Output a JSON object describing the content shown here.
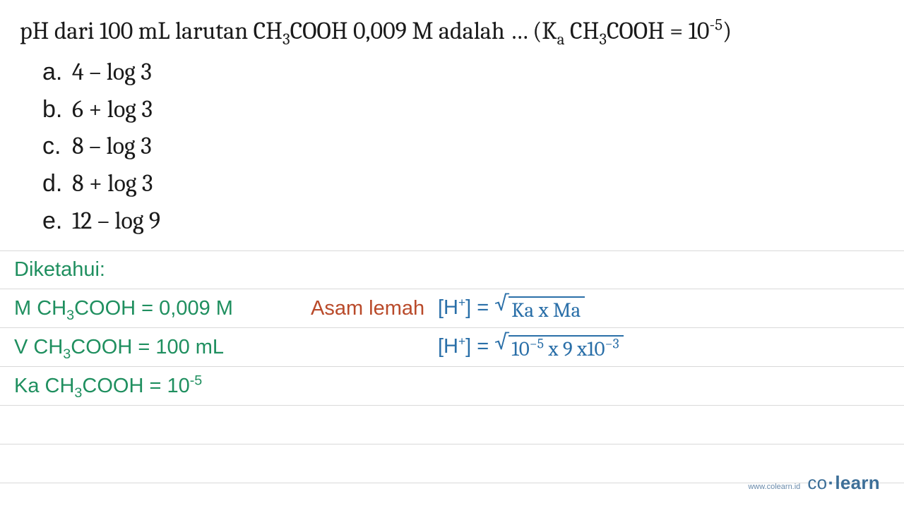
{
  "question": {
    "prefix": "pH dari 100 mL larutan CH",
    "sub1": "3",
    "mid1": "COOH 0,009 M adalah … (K",
    "ka_sub": "a",
    "mid2": " CH",
    "sub2": "3",
    "mid3": "COOH = 10",
    "exp": "-5",
    "suffix": ")"
  },
  "options": [
    {
      "letter": "a.",
      "text": "4 – log 3"
    },
    {
      "letter": "b.",
      "text": "6 + log 3"
    },
    {
      "letter": "c.",
      "text": "8 – log 3"
    },
    {
      "letter": "d.",
      "text": "8 + log 3"
    },
    {
      "letter": "e.",
      "text": "12 – log 9"
    }
  ],
  "work": {
    "heading": "Diketahui:",
    "row1_known_pre": "M CH",
    "row1_known_sub": "3",
    "row1_known_post": "COOH = 0,009 M",
    "row1_label": "Asam lemah",
    "row1_formula_lhs_pre": "[H",
    "row1_formula_lhs_sup": "+",
    "row1_formula_lhs_post": "] = ",
    "row1_formula_rhs": "Ka x Ma",
    "row2_known_pre": "V CH",
    "row2_known_sub": "3",
    "row2_known_post": "COOH = 100 mL",
    "row2_formula_lhs_pre": "[H",
    "row2_formula_lhs_sup": "+",
    "row2_formula_lhs_post": "] = ",
    "row2_rhs_a": "10",
    "row2_rhs_exp1": "−5",
    "row2_rhs_b": " x 9 x10",
    "row2_rhs_exp2": "−3",
    "row3_known_pre": "Ka CH",
    "row3_known_sub": "3",
    "row3_known_mid": "COOH = 10",
    "row3_known_exp": "-5"
  },
  "footer": {
    "url": "www.colearn.id",
    "logo_co": "co",
    "logo_dot": "·",
    "logo_learn": "learn"
  },
  "colors": {
    "text": "#1a1a1a",
    "known": "#1f8f5f",
    "label": "#b94a2a",
    "formula": "#2a6fa8",
    "rule": "#d9d9d9"
  }
}
